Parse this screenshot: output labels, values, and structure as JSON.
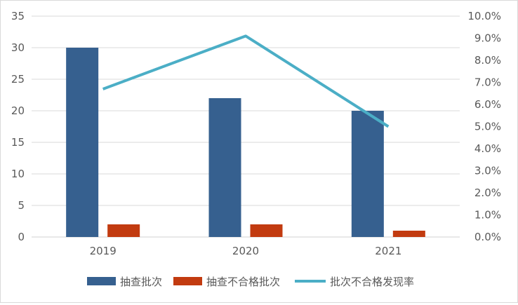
{
  "chart_data": {
    "type": "bar",
    "categories": [
      "2019",
      "2020",
      "2021"
    ],
    "series": [
      {
        "name": "抽查批次",
        "type": "bar",
        "axis": "left",
        "values": [
          30,
          22,
          20
        ],
        "color": "#36608F"
      },
      {
        "name": "抽查不合格批次",
        "type": "bar",
        "axis": "left",
        "values": [
          2,
          2,
          1
        ],
        "color": "#C23B10"
      },
      {
        "name": "批次不合格发现率",
        "type": "line",
        "axis": "right",
        "values": [
          0.067,
          0.091,
          0.05
        ],
        "color": "#4BAEC6"
      }
    ],
    "y_left": {
      "min": 0,
      "max": 35,
      "step": 5,
      "ticks": [
        "0",
        "5",
        "10",
        "15",
        "20",
        "25",
        "30",
        "35"
      ]
    },
    "y_right": {
      "min": 0,
      "max": 0.1,
      "step": 0.01,
      "ticks": [
        "0.0%",
        "1.0%",
        "2.0%",
        "3.0%",
        "4.0%",
        "5.0%",
        "6.0%",
        "7.0%",
        "8.0%",
        "9.0%",
        "10.0%"
      ]
    },
    "gridlines": "horizontal",
    "legend_position": "bottom",
    "title": "",
    "xlabel": "",
    "ylabel": ""
  }
}
